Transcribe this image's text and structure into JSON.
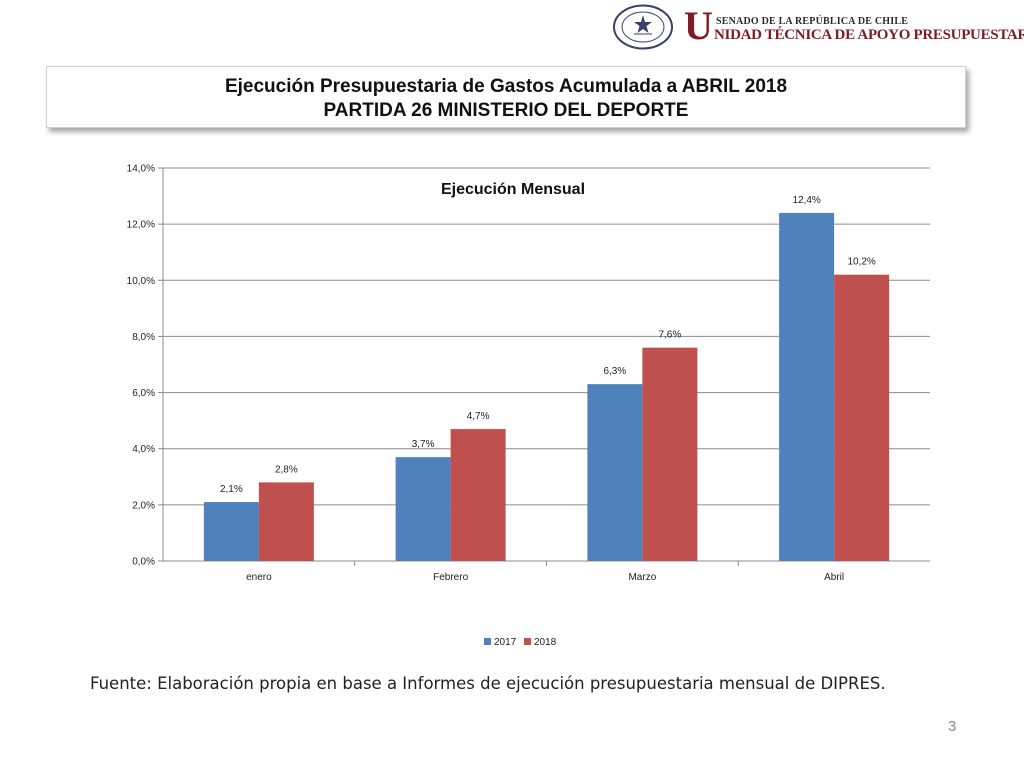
{
  "header": {
    "brand_initial": "U",
    "brand_line1": "SENADO DE LA REPÚBLICA DE CHILE",
    "brand_line2": "NIDAD TÉCNICA DE APOYO PRESUPUESTARIO",
    "seal_text_top": "REPÚBLICA DE CHILE",
    "seal_text_bottom": "SENADO"
  },
  "title": {
    "line1": "Ejecución Presupuestaria de Gastos Acumulada a ABRIL 2018",
    "line2": "PARTIDA 26 MINISTERIO DEL DEPORTE"
  },
  "chart_data": {
    "type": "bar",
    "title": "Ejecución Mensual",
    "categories": [
      "enero",
      "Febrero",
      "Marzo",
      "Abril"
    ],
    "series": [
      {
        "name": "2017",
        "values": [
          2.1,
          3.7,
          6.3,
          12.4
        ],
        "labels": [
          "2,1%",
          "3,7%",
          "6,3%",
          "12,4%"
        ],
        "color": "#4f81bd"
      },
      {
        "name": "2018",
        "values": [
          2.8,
          4.7,
          7.6,
          10.2
        ],
        "labels": [
          "2,8%",
          "4,7%",
          "7,6%",
          "10,2%"
        ],
        "color": "#c0504d"
      }
    ],
    "ylim": [
      0,
      14
    ],
    "yticks": [
      "0,0%",
      "2,0%",
      "4,0%",
      "6,0%",
      "8,0%",
      "10,0%",
      "12,0%",
      "14,0%"
    ],
    "grid": true,
    "legend_position": "bottom"
  },
  "source": "Fuente: Elaboración propia en base  a Informes de ejecución presupuestaria mensual de DIPRES.",
  "page_number": "3"
}
